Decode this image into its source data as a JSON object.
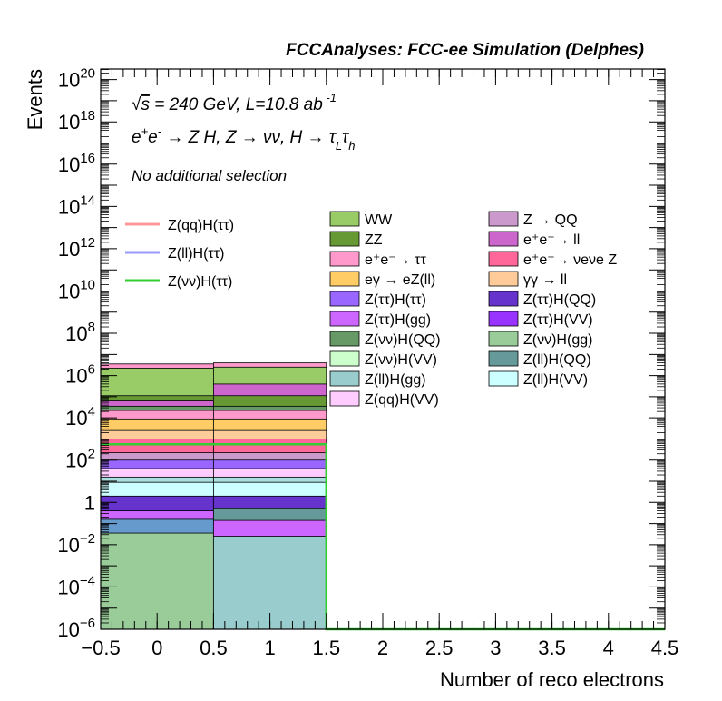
{
  "chart_data": {
    "type": "histogram",
    "header": "FCCAnalyses: FCC-ee Simulation (Delphes)",
    "info_lines": [
      "√s = 240 GeV, L=10.8 ab^-1",
      "e+e- → Z H, Z → νν, H → τLτh",
      "No additional selection"
    ],
    "xlabel": "Number of reco electrons",
    "ylabel": "Events",
    "xlim": [
      -0.5,
      4.5
    ],
    "ylim_exponent": [
      -6,
      20.5
    ],
    "ylog": true,
    "x_ticks": [
      "−0.5",
      "0",
      "0.5",
      "1",
      "1.5",
      "2",
      "2.5",
      "3",
      "3.5",
      "4",
      "4.5"
    ],
    "x_tick_values": [
      -0.5,
      0,
      0.5,
      1,
      1.5,
      2,
      2.5,
      3,
      3.5,
      4,
      4.5
    ],
    "y_ticks": [
      {
        "base": "10",
        "exp": "−6",
        "value": -6
      },
      {
        "base": "10",
        "exp": "−4",
        "value": -4
      },
      {
        "base": "10",
        "exp": "−2",
        "value": -2
      },
      {
        "base": "1",
        "exp": "",
        "value": 0
      },
      {
        "base": "10",
        "exp": "2",
        "value": 2
      },
      {
        "base": "10",
        "exp": "4",
        "value": 4
      },
      {
        "base": "10",
        "exp": "6",
        "value": 6
      },
      {
        "base": "10",
        "exp": "8",
        "value": 8
      },
      {
        "base": "10",
        "exp": "10",
        "value": 10
      },
      {
        "base": "10",
        "exp": "12",
        "value": 12
      },
      {
        "base": "10",
        "exp": "14",
        "value": 14
      },
      {
        "base": "10",
        "exp": "16",
        "value": 16
      },
      {
        "base": "10",
        "exp": "18",
        "value": 18
      },
      {
        "base": "10",
        "exp": "20",
        "value": 20
      }
    ],
    "bins": [
      [
        -0.5,
        0.5
      ],
      [
        0.5,
        1.5
      ]
    ],
    "stack_log10_tops": [
      {
        "bin": 0,
        "layers": [
          {
            "color": "#99cc99",
            "top": -1.45
          },
          {
            "color": "#6699cc",
            "top": -0.8
          },
          {
            "color": "#cc66ff",
            "top": -0.4
          },
          {
            "color": "#6633cc",
            "top": 0.3
          },
          {
            "color": "#ccffff",
            "top": 0.95
          },
          {
            "color": "#aadddd",
            "top": 1.2
          },
          {
            "color": "#ffccff",
            "top": 1.6
          },
          {
            "color": "#9966ff",
            "top": 2.0
          },
          {
            "color": "#cc99cc",
            "top": 2.35
          },
          {
            "color": "#ff6699",
            "top": 3.0
          },
          {
            "color": "#ffcc99",
            "top": 3.4
          },
          {
            "color": "#ffcc66",
            "top": 3.95
          },
          {
            "color": "#ff99cc",
            "top": 4.35
          },
          {
            "color": "#669966",
            "top": 4.55
          },
          {
            "color": "#cc66cc",
            "top": 4.8
          },
          {
            "color": "#669933",
            "top": 5.05
          },
          {
            "color": "#99cc66",
            "top": 6.35
          },
          {
            "color": "#ff99cc",
            "top": 6.55
          }
        ]
      },
      {
        "bin": 1,
        "layers": [
          {
            "color": "#99cccc",
            "top": -1.6
          },
          {
            "color": "#cc66ff",
            "top": -0.85
          },
          {
            "color": "#669999",
            "top": -0.3
          },
          {
            "color": "#6633cc",
            "top": 0.3
          },
          {
            "color": "#ccffff",
            "top": 0.95
          },
          {
            "color": "#aadddd",
            "top": 1.2
          },
          {
            "color": "#ffccff",
            "top": 1.6
          },
          {
            "color": "#9966ff",
            "top": 2.0
          },
          {
            "color": "#cc99cc",
            "top": 2.35
          },
          {
            "color": "#ff6699",
            "top": 3.0
          },
          {
            "color": "#ffcc99",
            "top": 3.4
          },
          {
            "color": "#ffcc66",
            "top": 3.95
          },
          {
            "color": "#ff99cc",
            "top": 4.35
          },
          {
            "color": "#669966",
            "top": 4.55
          },
          {
            "color": "#669933",
            "top": 5.05
          },
          {
            "color": "#cc66cc",
            "top": 5.6
          },
          {
            "color": "#99cc66",
            "top": 6.4
          },
          {
            "color": "#ff99cc",
            "top": 6.6
          }
        ]
      }
    ],
    "signal_line": {
      "color": "#33cc33",
      "bin_log10_tops": [
        2.75,
        2.75
      ],
      "baseline": -6
    },
    "legend_signals": [
      {
        "label": "Z(qq)H(ττ)",
        "color": "#ff9999"
      },
      {
        "label": "Z(ll)H(ττ)",
        "color": "#9999ff"
      },
      {
        "label": "Z(νν)H(ττ)",
        "color": "#33cc33"
      }
    ],
    "legend_backgrounds": [
      {
        "label": "WW",
        "color": "#99cc66"
      },
      {
        "label": "Z → QQ",
        "color": "#cc99cc"
      },
      {
        "label": "ZZ",
        "color": "#669933"
      },
      {
        "label": "e⁺e⁻→ ll",
        "color": "#cc66cc"
      },
      {
        "label": "e⁺e⁻→ ττ",
        "color": "#ff99cc"
      },
      {
        "label": "e⁺e⁻→ νeνe Z",
        "color": "#ff6699"
      },
      {
        "label": "eγ → eZ(ll)",
        "color": "#ffcc66"
      },
      {
        "label": "γγ → ll",
        "color": "#ffcc99"
      },
      {
        "label": "Z(ττ)H(ττ)",
        "color": "#9966ff"
      },
      {
        "label": "Z(ττ)H(QQ)",
        "color": "#6633cc"
      },
      {
        "label": "Z(ττ)H(gg)",
        "color": "#cc66ff"
      },
      {
        "label": "Z(ττ)H(VV)",
        "color": "#9933ff"
      },
      {
        "label": "Z(νν)H(QQ)",
        "color": "#669966"
      },
      {
        "label": "Z(νν)H(gg)",
        "color": "#99cc99"
      },
      {
        "label": "Z(νν)H(VV)",
        "color": "#ccffcc"
      },
      {
        "label": "Z(ll)H(QQ)",
        "color": "#669999"
      },
      {
        "label": "Z(ll)H(gg)",
        "color": "#99cccc"
      },
      {
        "label": "Z(ll)H(VV)",
        "color": "#ccffff"
      },
      {
        "label": "Z(qq)H(VV)",
        "color": "#ffccff"
      }
    ]
  }
}
